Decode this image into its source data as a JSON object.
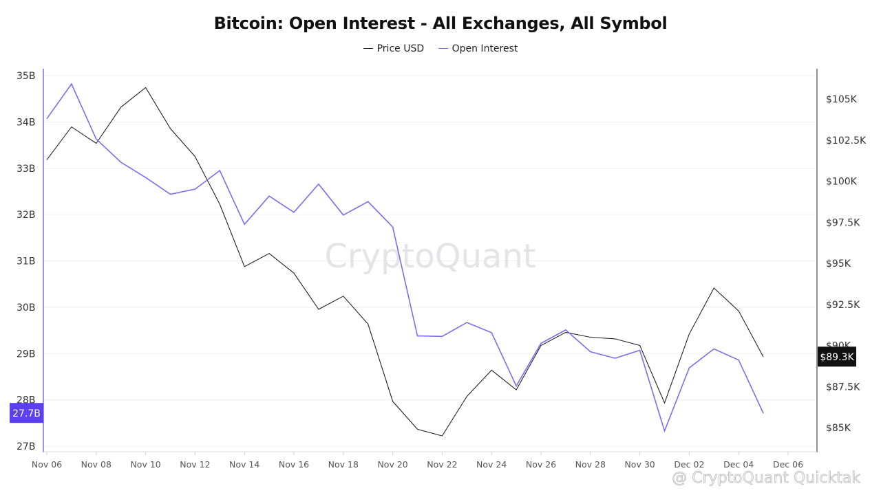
{
  "chart_data": {
    "type": "line",
    "title": "Bitcoin: Open Interest - All Exchanges, All Symbol",
    "legend": {
      "placement": "top-center",
      "entries": [
        "Price USD",
        "Open Interest"
      ]
    },
    "grid": true,
    "x": [
      "Nov 06",
      "Nov 07",
      "Nov 08",
      "Nov 09",
      "Nov 10",
      "Nov 11",
      "Nov 12",
      "Nov 13",
      "Nov 14",
      "Nov 15",
      "Nov 16",
      "Nov 17",
      "Nov 18",
      "Nov 19",
      "Nov 20",
      "Nov 21",
      "Nov 22",
      "Nov 23",
      "Nov 24",
      "Nov 25",
      "Nov 26",
      "Nov 27",
      "Nov 28",
      "Nov 29",
      "Nov 30",
      "Dec 01",
      "Dec 02",
      "Dec 03",
      "Dec 04",
      "Dec 05"
    ],
    "x_ticks": [
      "Nov 06",
      "Nov 08",
      "Nov 10",
      "Nov 12",
      "Nov 14",
      "Nov 16",
      "Nov 18",
      "Nov 20",
      "Nov 22",
      "Nov 24",
      "Nov 26",
      "Nov 28",
      "Nov 30",
      "Dec 02",
      "Dec 04",
      "Dec 06"
    ],
    "y_left": {
      "ticks": [
        27,
        28,
        29,
        30,
        31,
        32,
        33,
        34,
        35
      ],
      "tick_labels": [
        "27B",
        "28B",
        "29B",
        "30B",
        "31B",
        "32B",
        "33B",
        "34B",
        "35B"
      ],
      "range": [
        27,
        35
      ]
    },
    "y_right": {
      "ticks": [
        85000,
        87500,
        90000,
        92500,
        95000,
        97500,
        100000,
        102500,
        105000
      ],
      "tick_labels": [
        "$85K",
        "$87.5K",
        "$90K",
        "$92.5K",
        "$95K",
        "$97.5K",
        "$100K",
        "$102.5K",
        "$105K"
      ],
      "range": [
        84200,
        107000
      ]
    },
    "series": [
      {
        "name": "Price USD",
        "axis": "right",
        "color": "#222222",
        "values": [
          101300,
          103300,
          102300,
          104500,
          105700,
          103200,
          101500,
          98600,
          94800,
          95600,
          94400,
          92200,
          93000,
          91300,
          86600,
          84900,
          84500,
          86900,
          88500,
          87300,
          90000,
          90800,
          90500,
          90400,
          90000,
          86500,
          90700,
          93500,
          92100,
          89300
        ]
      },
      {
        "name": "Open Interest",
        "axis": "left",
        "color": "#7b6cf0",
        "values": [
          34.07,
          34.82,
          33.63,
          33.13,
          32.8,
          32.44,
          32.55,
          32.95,
          31.79,
          32.4,
          32.05,
          32.66,
          31.99,
          32.28,
          31.73,
          29.38,
          29.37,
          29.67,
          29.45,
          28.3,
          29.22,
          29.51,
          29.04,
          28.9,
          29.07,
          27.33,
          28.69,
          29.1,
          28.86,
          27.71
        ]
      }
    ],
    "current_value_badges": {
      "left": "27.7B",
      "right": "$89.3K"
    },
    "watermark": "CryptoQuant",
    "credit": "@ CryptoQuant Quicktak"
  }
}
